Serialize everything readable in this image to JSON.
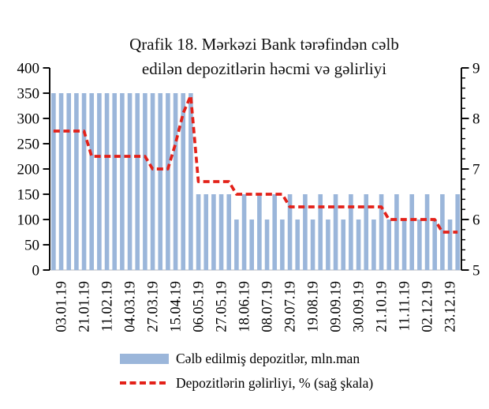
{
  "title": {
    "line1": "Qrafik 18. Mərkəzi Bank tərəfindən cəlb",
    "line2": "edilən depozitlərin həcmi və gəlirliyi"
  },
  "legend": {
    "bars_label": "Cəlb edilmiş depozitlər, mln.man",
    "line_label": "Depozitlərin gəlirliyi, % (sağ şkala)"
  },
  "colors": {
    "bar": "#9bb6da",
    "line": "#e32119",
    "axis": "#000000",
    "baseline": "#c3c7cd",
    "background": "#ffffff"
  },
  "chart_data": {
    "type": "bar",
    "title": "Qrafik 18. Mərkəzi Bank tərəfindən cəlb edilən depozitlərin həcmi və gəlirliyi",
    "x_labels": [
      "03.01.19",
      "21.01.19",
      "11.02.19",
      "04.03.19",
      "27.03.19",
      "15.04.19",
      "06.05.19",
      "27.05.19",
      "18.06.19",
      "08.07.19",
      "29.07.19",
      "19.08.19",
      "09.09.19",
      "30.09.19",
      "21.10.19",
      "11.11.19",
      "02.12.19",
      "23.12.19"
    ],
    "x_label_every_n_bars": 3,
    "x_label_first_bar_index": 1,
    "series": [
      {
        "name": "Cəlb edilmiş depozitlər, mln.man",
        "type": "bar",
        "axis": "left",
        "values": [
          350,
          350,
          350,
          350,
          350,
          350,
          350,
          350,
          350,
          350,
          350,
          350,
          350,
          350,
          350,
          350,
          350,
          350,
          350,
          150,
          150,
          150,
          150,
          150,
          100,
          150,
          100,
          150,
          100,
          150,
          100,
          150,
          100,
          150,
          100,
          150,
          100,
          150,
          100,
          150,
          100,
          150,
          100,
          150,
          100,
          150,
          100,
          150,
          100,
          150,
          100,
          150,
          100,
          150
        ]
      },
      {
        "name": "Depozitlərin gəlirliyi, % (sağ şkala)",
        "type": "line",
        "axis": "right",
        "values": [
          7.75,
          7.75,
          7.75,
          7.75,
          7.75,
          7.25,
          7.25,
          7.25,
          7.25,
          7.25,
          7.25,
          7.25,
          7.25,
          7.0,
          7.0,
          7.0,
          7.5,
          8.1,
          8.45,
          6.75,
          6.75,
          6.75,
          6.75,
          6.75,
          6.5,
          6.5,
          6.5,
          6.5,
          6.5,
          6.5,
          6.5,
          6.25,
          6.25,
          6.25,
          6.25,
          6.25,
          6.25,
          6.25,
          6.25,
          6.25,
          6.25,
          6.25,
          6.25,
          6.25,
          6.0,
          6.0,
          6.0,
          6.0,
          6.0,
          6.0,
          6.0,
          5.75,
          5.75,
          5.75
        ]
      }
    ],
    "left_axis": {
      "min": 0,
      "max": 400,
      "tick_step": 50,
      "tick_labels": [
        "0",
        "50",
        "100",
        "150",
        "200",
        "250",
        "300",
        "350",
        "400"
      ]
    },
    "right_axis": {
      "min": 5,
      "max": 9,
      "tick_step": 1,
      "minor_tick_step": 0.2,
      "tick_labels": [
        "5",
        "6",
        "7",
        "8",
        "9"
      ]
    },
    "grid": false,
    "legend_position": "bottom"
  }
}
